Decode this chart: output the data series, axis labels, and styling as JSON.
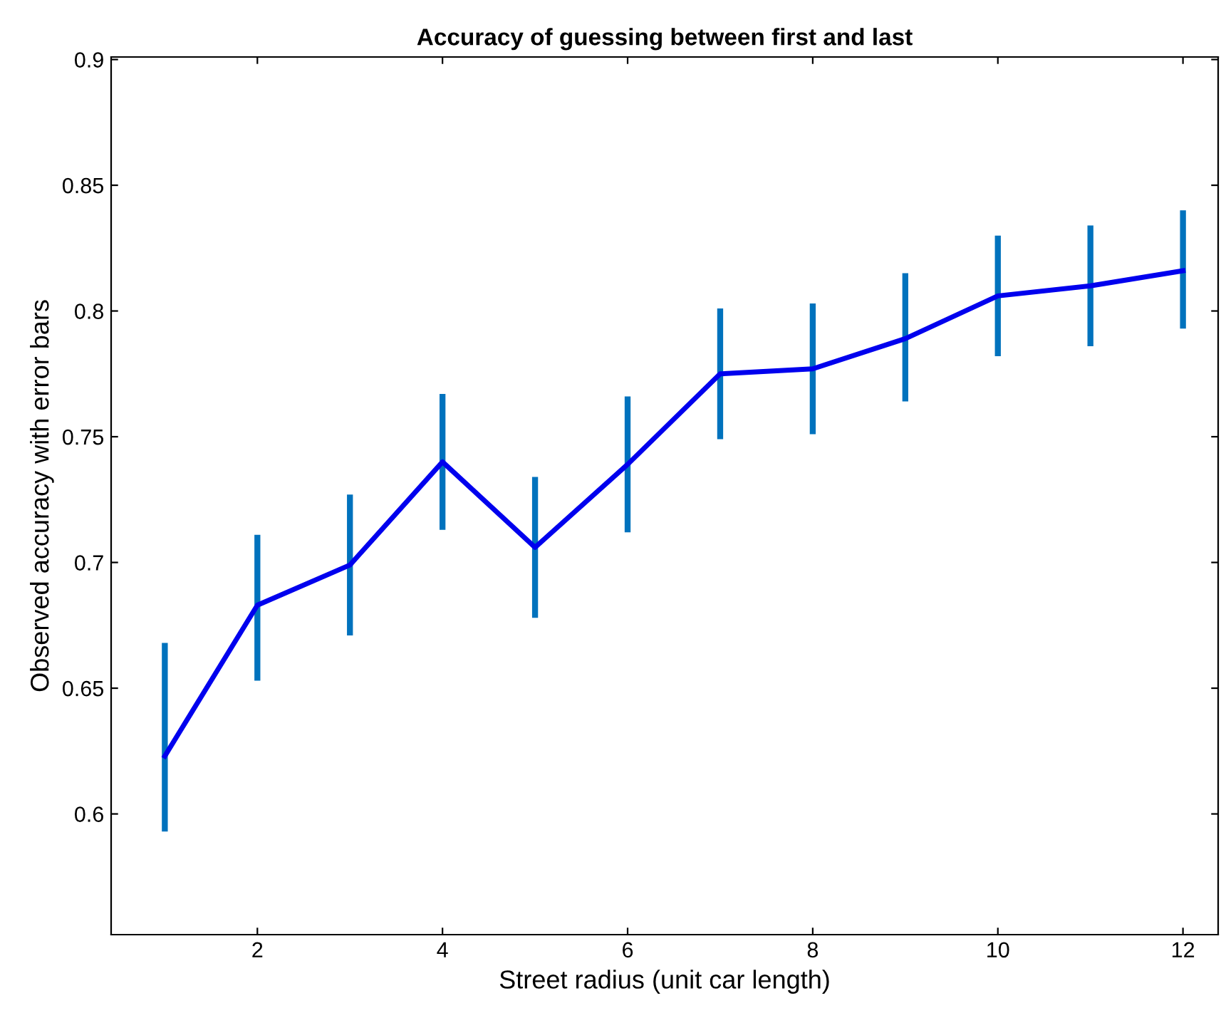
{
  "chart_data": {
    "type": "line",
    "title": "Accuracy of guessing between first and last",
    "xlabel": "Street radius (unit car length)",
    "ylabel": "Observed accuracy with error bars",
    "x": [
      1,
      2,
      3,
      4,
      5,
      6,
      7,
      8,
      9,
      10,
      11,
      12
    ],
    "series": [
      {
        "color": "#0000ee",
        "values": [
          0.623,
          0.683,
          0.699,
          0.74,
          0.706,
          0.739,
          0.775,
          0.777,
          0.789,
          0.806,
          0.81,
          0.816
        ],
        "errors": [
          [
            0.593,
            0.668
          ],
          [
            0.653,
            0.711
          ],
          [
            0.671,
            0.727
          ],
          [
            0.713,
            0.767
          ],
          [
            0.678,
            0.734
          ],
          [
            0.712,
            0.766
          ],
          [
            0.749,
            0.801
          ],
          [
            0.751,
            0.803
          ],
          [
            0.764,
            0.815
          ],
          [
            0.782,
            0.83
          ],
          [
            0.786,
            0.834
          ],
          [
            0.793,
            0.84
          ]
        ]
      }
    ],
    "xlim": [
      0.42,
      12.38
    ],
    "xticks": [
      2,
      4,
      6,
      8,
      10,
      12
    ],
    "ylim": [
      0.552,
      0.901
    ],
    "yticks": [
      0.6,
      0.65,
      0.7,
      0.75,
      0.8,
      0.85,
      0.9
    ],
    "grid": false,
    "marker": "none",
    "line_style": "solid"
  }
}
